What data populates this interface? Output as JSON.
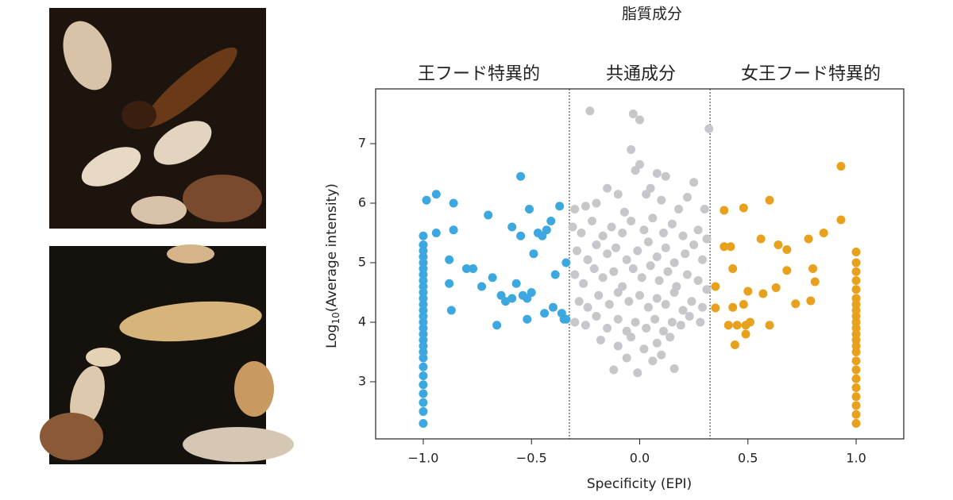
{
  "chart_data": {
    "type": "scatter",
    "title": "脂質成分",
    "annotations": [
      "王フード特異的",
      "共通成分",
      "女王フード特異的"
    ],
    "xlabel": "Specificity (EPI)",
    "ylabel": {
      "base": "Log",
      "sub": "10",
      "rest": "(Average intensity)"
    },
    "xlim": [
      -1.22,
      1.22
    ],
    "ylim": [
      2.04,
      7.92
    ],
    "xticks": [
      {
        "value": -1,
        "label": "−1.0"
      },
      {
        "value": -0.5,
        "label": "−0.5"
      },
      {
        "value": 0,
        "label": "0.0"
      },
      {
        "value": 0.5,
        "label": "0.5"
      },
      {
        "value": 1,
        "label": "1.0"
      }
    ],
    "yticks": [
      3,
      4,
      5,
      6,
      7
    ],
    "dividers": [
      -0.325,
      0.325
    ],
    "series": [
      {
        "color": "#3da8e0",
        "x": [
          -1,
          -1,
          -1,
          -1,
          -1,
          -1,
          -1,
          -1,
          -1,
          -1,
          -1,
          -1,
          -1,
          -1,
          -1,
          -1,
          -1,
          -1,
          -1,
          -1,
          -1,
          -1,
          -1,
          -1,
          -1,
          -1,
          -1,
          -1,
          -0.985,
          -0.94,
          -0.86,
          -0.94,
          -0.86,
          -0.88,
          -0.88,
          -0.87,
          -0.8,
          -0.77,
          -0.73,
          -0.7,
          -0.68,
          -0.66,
          -0.64,
          -0.62,
          -0.59,
          -0.59,
          -0.57,
          -0.55,
          -0.55,
          -0.54,
          -0.52,
          -0.52,
          -0.51,
          -0.5,
          -0.49,
          -0.47,
          -0.45,
          -0.44,
          -0.43,
          -0.41,
          -0.4,
          -0.39,
          -0.37,
          -0.36,
          -0.34,
          -0.35,
          -0.34
        ],
        "y": [
          2.3,
          2.5,
          2.65,
          2.8,
          2.95,
          3.1,
          3.25,
          3.4,
          3.5,
          3.6,
          3.7,
          3.8,
          3.9,
          4.0,
          4.1,
          4.2,
          4.3,
          4.4,
          4.5,
          4.6,
          4.7,
          4.8,
          4.9,
          5.0,
          5.1,
          5.2,
          5.3,
          5.45,
          6.05,
          6.15,
          6.0,
          5.5,
          5.55,
          5.05,
          4.65,
          4.2,
          4.9,
          4.9,
          4.6,
          5.8,
          4.75,
          3.95,
          4.45,
          4.35,
          5.6,
          4.4,
          4.65,
          5.45,
          6.45,
          4.45,
          4.05,
          4.4,
          5.9,
          4.5,
          5.15,
          5.5,
          5.45,
          4.15,
          5.55,
          5.7,
          4.25,
          4.8,
          5.95,
          4.15,
          5.0,
          4.05,
          4.05
        ]
      },
      {
        "color": "#c6c6cb",
        "x": [
          -0.23,
          -0.03,
          0.0,
          0.32,
          -0.04,
          -0.15,
          0.0,
          -0.02,
          0.05,
          0.08,
          0.12,
          0.25,
          -0.3,
          -0.25,
          -0.2,
          -0.1,
          -0.07,
          0.03,
          0.1,
          0.18,
          0.22,
          0.3,
          -0.31,
          -0.27,
          -0.22,
          -0.17,
          -0.13,
          -0.08,
          -0.04,
          0.02,
          0.06,
          0.11,
          0.15,
          0.2,
          0.27,
          0.31,
          -0.29,
          -0.24,
          -0.2,
          -0.15,
          -0.11,
          -0.06,
          -0.01,
          0.04,
          0.08,
          0.12,
          0.16,
          0.21,
          0.25,
          0.29,
          -0.3,
          -0.26,
          -0.21,
          -0.17,
          -0.12,
          -0.08,
          -0.03,
          0.01,
          0.05,
          0.09,
          0.13,
          0.17,
          0.22,
          0.27,
          0.31,
          -0.28,
          -0.24,
          -0.19,
          -0.14,
          -0.1,
          -0.05,
          0.0,
          0.04,
          0.08,
          0.12,
          0.16,
          0.2,
          0.24,
          0.29,
          -0.3,
          -0.25,
          -0.2,
          -0.15,
          -0.1,
          -0.06,
          -0.02,
          0.03,
          0.07,
          0.11,
          0.15,
          0.19,
          0.23,
          0.28,
          -0.18,
          -0.1,
          -0.04,
          0.02,
          0.08,
          0.14,
          -0.12,
          -0.01,
          0.06,
          0.16,
          -0.06,
          0.1
        ],
        "y": [
          7.55,
          7.5,
          7.4,
          7.25,
          6.9,
          6.25,
          6.65,
          6.55,
          6.25,
          6.5,
          6.45,
          6.35,
          5.9,
          5.95,
          6.0,
          6.15,
          5.85,
          6.15,
          6.05,
          5.9,
          6.1,
          5.9,
          5.6,
          5.5,
          5.7,
          5.45,
          5.6,
          5.5,
          5.7,
          5.55,
          5.75,
          5.5,
          5.65,
          5.45,
          5.55,
          5.4,
          5.2,
          5.05,
          5.3,
          5.15,
          5.25,
          5.05,
          5.2,
          5.35,
          5.1,
          5.25,
          5.0,
          5.15,
          5.3,
          5.05,
          4.8,
          4.65,
          4.9,
          4.75,
          4.85,
          4.6,
          4.9,
          4.75,
          4.95,
          4.7,
          4.85,
          4.6,
          4.8,
          4.7,
          4.55,
          4.35,
          4.25,
          4.45,
          4.3,
          4.5,
          4.35,
          4.45,
          4.25,
          4.4,
          4.3,
          4.5,
          4.2,
          4.35,
          4.25,
          4.0,
          3.95,
          4.1,
          3.9,
          4.05,
          3.85,
          4.0,
          3.9,
          4.05,
          3.85,
          4.0,
          3.95,
          4.1,
          4.0,
          3.7,
          3.6,
          3.75,
          3.55,
          3.65,
          3.75,
          3.2,
          3.15,
          3.35,
          3.22,
          3.4,
          3.45
        ]
      },
      {
        "color": "#e8a11c",
        "x": [
          1,
          1,
          1,
          1,
          1,
          1,
          1,
          1,
          1,
          1,
          1,
          1,
          1,
          1,
          1,
          1,
          1,
          1,
          1,
          1,
          1,
          1,
          1,
          0.39,
          0.48,
          0.6,
          0.93,
          0.93,
          0.85,
          0.78,
          0.56,
          0.64,
          0.68,
          0.39,
          0.42,
          0.43,
          0.35,
          0.5,
          0.57,
          0.63,
          0.68,
          0.8,
          0.81,
          0.79,
          0.72,
          0.48,
          0.43,
          0.35,
          0.41,
          0.45,
          0.49,
          0.49,
          0.44,
          0.6,
          0.51
        ],
        "y": [
          2.3,
          2.45,
          2.6,
          2.75,
          2.9,
          3.05,
          3.2,
          3.35,
          3.5,
          3.6,
          3.7,
          3.8,
          3.9,
          4.0,
          4.1,
          4.2,
          4.3,
          4.4,
          4.55,
          4.7,
          4.85,
          5.0,
          5.18,
          5.88,
          5.92,
          6.05,
          6.62,
          5.72,
          5.5,
          5.4,
          5.4,
          5.3,
          5.22,
          5.27,
          5.27,
          4.9,
          4.6,
          4.52,
          4.48,
          4.58,
          4.87,
          4.9,
          4.68,
          4.36,
          4.31,
          4.3,
          4.25,
          4.24,
          3.95,
          3.95,
          3.95,
          3.8,
          3.62,
          3.95,
          4.0
        ]
      }
    ]
  }
}
